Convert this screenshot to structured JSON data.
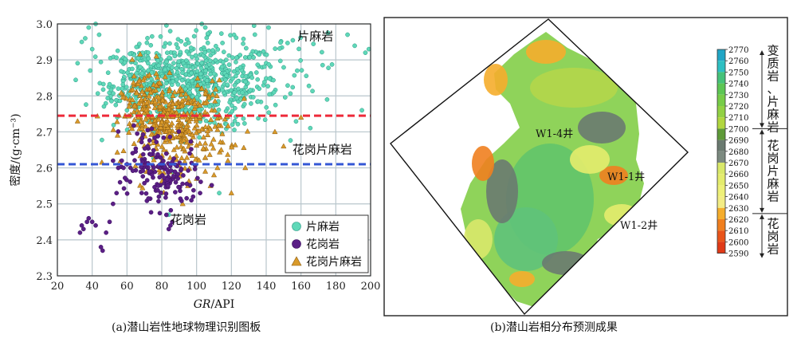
{
  "chart_data": [
    {
      "type": "scatter",
      "title": "",
      "xlabel": "GR/API",
      "xlabel_italic": "GR",
      "xlabel_unit": "/API",
      "ylabel": "密度/(g·cm⁻³)",
      "xlim": [
        20,
        200
      ],
      "ylim": [
        2.3,
        3.0
      ],
      "x_ticks": [
        "20",
        "40",
        "60",
        "80",
        "100",
        "120",
        "140",
        "160",
        "180",
        "200"
      ],
      "y_ticks": [
        "2.3",
        "2.4",
        "2.5",
        "2.6",
        "2.7",
        "2.8",
        "2.9",
        "3.0"
      ],
      "grid": true,
      "legend_placement": "bottom-right",
      "thresholds": [
        {
          "y": 2.745,
          "color": "#ee2a3a"
        },
        {
          "y": 2.61,
          "color": "#3457d5"
        }
      ],
      "annotations": [
        {
          "text": "片麻岩",
          "x": 158,
          "y": 2.955
        },
        {
          "text": "花岗片麻岩",
          "x": 155,
          "y": 2.64
        },
        {
          "text": "花岗岩",
          "x": 85,
          "y": 2.445
        }
      ],
      "series": [
        {
          "name": "片麻岩",
          "color": "#5fd8b8",
          "marker": "circle",
          "clusters": [
            {
              "cx": 100,
              "cy": 2.83,
              "sx": 24,
              "sy": 0.06,
              "n": 620
            },
            {
              "cx": 68,
              "cy": 2.86,
              "sx": 10,
              "sy": 0.045,
              "n": 140
            },
            {
              "cx": 120,
              "cy": 2.92,
              "sx": 30,
              "sy": 0.05,
              "n": 60
            }
          ],
          "points": [
            [
              38,
              2.99
            ],
            [
              42,
              3.0
            ],
            [
              44,
              2.97
            ],
            [
              36,
              2.96
            ],
            [
              34,
              2.95
            ],
            [
              40,
              2.93
            ],
            [
              103,
              3.0
            ],
            [
              105,
              2.99
            ],
            [
              197,
              2.92
            ],
            [
              199,
              2.93
            ],
            [
              175,
              2.79
            ],
            [
              195,
              2.76
            ],
            [
              60,
              2.76
            ],
            [
              55,
              2.82
            ],
            [
              80,
              2.53
            ],
            [
              84,
              2.47
            ],
            [
              113,
              2.53
            ],
            [
              136,
              2.82
            ]
          ]
        },
        {
          "name": "花岗岩",
          "color": "#5b1f86",
          "marker": "circle",
          "clusters": [
            {
              "cx": 82,
              "cy": 2.57,
              "sx": 9,
              "sy": 0.045,
              "n": 120
            },
            {
              "cx": 70,
              "cy": 2.65,
              "sx": 5,
              "sy": 0.04,
              "n": 35
            }
          ],
          "points": [
            [
              33,
              2.42
            ],
            [
              34,
              2.44
            ],
            [
              35,
              2.43
            ],
            [
              37,
              2.45
            ],
            [
              38,
              2.46
            ],
            [
              40,
              2.45
            ],
            [
              42,
              2.44
            ],
            [
              45,
              2.38
            ],
            [
              46,
              2.37
            ],
            [
              48,
              2.42
            ],
            [
              50,
              2.45
            ],
            [
              52,
              2.5
            ],
            [
              54,
              2.53
            ],
            [
              56,
              2.56
            ],
            [
              58,
              2.6
            ],
            [
              55,
              2.6
            ],
            [
              57,
              2.62
            ],
            [
              60,
              2.61
            ],
            [
              62,
              2.6
            ],
            [
              52,
              2.62
            ],
            [
              84,
              2.43
            ],
            [
              85,
              2.44
            ],
            [
              86,
              2.45
            ],
            [
              97,
              2.51
            ],
            [
              98,
              2.52
            ],
            [
              102,
              2.53
            ]
          ]
        },
        {
          "name": "花岗片麻岩",
          "color": "#d99a2a",
          "marker": "triangle",
          "clusters": [
            {
              "cx": 88,
              "cy": 2.72,
              "sx": 15,
              "sy": 0.06,
              "n": 380
            },
            {
              "cx": 70,
              "cy": 2.78,
              "sx": 6,
              "sy": 0.05,
              "n": 70
            }
          ],
          "points": [
            [
              105,
              2.59
            ],
            [
              110,
              2.58
            ],
            [
              112,
              2.6
            ],
            [
              118,
              2.62
            ],
            [
              128,
              2.6
            ],
            [
              145,
              2.7
            ],
            [
              160,
              2.74
            ],
            [
              150,
              2.66
            ],
            [
              120,
              2.53
            ],
            [
              108,
              2.55
            ],
            [
              92,
              2.5
            ],
            [
              95,
              2.55
            ],
            [
              100,
              2.57
            ]
          ]
        }
      ]
    },
    {
      "type": "heatmap",
      "title": "",
      "colorbar": {
        "ticks": [
          "2770",
          "2760",
          "2750",
          "2740",
          "2730",
          "2720",
          "2710",
          "2700",
          "2690",
          "2680",
          "2670",
          "2660",
          "2650",
          "2640",
          "2630",
          "2620",
          "2610",
          "2600",
          "2590"
        ],
        "colors": [
          "#21a5c5",
          "#2ebfc2",
          "#46c27a",
          "#5dc654",
          "#77cc48",
          "#92d144",
          "#b1d63f",
          "#5e9a38",
          "#6a7a70",
          "#7c8a80",
          "#d9e86a",
          "#e4ec6d",
          "#eef078",
          "#f3ec84",
          "#f5ad2c",
          "#f07f1f",
          "#e9541a",
          "#e03a17"
        ],
        "sections": [
          {
            "label": "变质岩、片麻岩",
            "range": [
              2700,
              2770
            ]
          },
          {
            "label": "花岗片麻岩",
            "range": [
              2625,
              2700
            ]
          },
          {
            "label": "花岗岩",
            "range": [
              2585,
              2625
            ]
          }
        ]
      },
      "wells": [
        "W1-4井",
        "W1-1井",
        "W1-2井"
      ]
    }
  ],
  "captions": {
    "left": "(a)潜山岩性地球物理识别图板",
    "right": "(b)潜山岩相分布预测成果"
  }
}
